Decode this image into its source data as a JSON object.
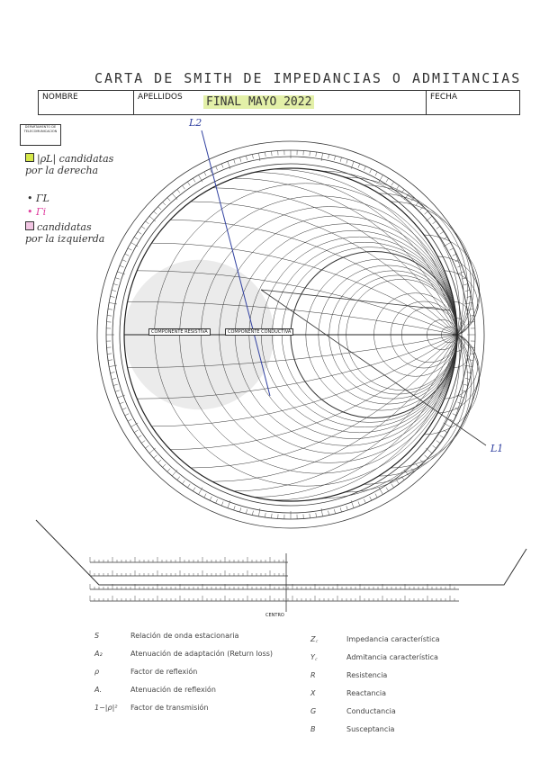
{
  "title": "CARTA DE SMITH DE IMPEDANCIAS O ADMITANCIAS",
  "header": {
    "nombre": "NOMBRE",
    "apellidos": "APELLIDOS",
    "exam": "FINAL MAYO 2022",
    "fecha": "FECHA"
  },
  "logo": "DEPARTAMENTO DE TELECOMUNICACION",
  "notes": {
    "right_label": "|ρL| candidatas por la derecha",
    "gamma_l": "ΓL",
    "gamma_i": "Γi",
    "left_label": "candidatas por la izquierda",
    "line1": "L1",
    "line2": "L2"
  },
  "colors": {
    "right_candidates": "#d6e84a",
    "left_candidates": "#f2c6e3",
    "gamma_i": "#e040a0",
    "ink": "#3040a0"
  },
  "chart_labels": {
    "left": "COMPONENTE RESISTIVA",
    "right": "COMPONENTE CONDUCTIVA",
    "center": "CENTRO"
  },
  "legend_left": [
    {
      "sym": "S",
      "text": "Relación de onda estacionaria"
    },
    {
      "sym": "A₂",
      "text": "Atenuación de adaptación (Return loss)"
    },
    {
      "sym": "ρ",
      "text": "Factor de reflexión"
    },
    {
      "sym": "A.",
      "text": "Atenuación de reflexión"
    },
    {
      "sym": "1−|ρ|²",
      "text": "Factor de transmisión"
    }
  ],
  "legend_right": [
    {
      "sym": "Z꜀",
      "text": "Impedancia característica"
    },
    {
      "sym": "Y꜀",
      "text": "Admitancia característica"
    },
    {
      "sym": "R",
      "text": "Resistencia"
    },
    {
      "sym": "X",
      "text": "Reactancia"
    },
    {
      "sym": "G",
      "text": "Conductancia"
    },
    {
      "sym": "B",
      "text": "Susceptancia"
    }
  ]
}
